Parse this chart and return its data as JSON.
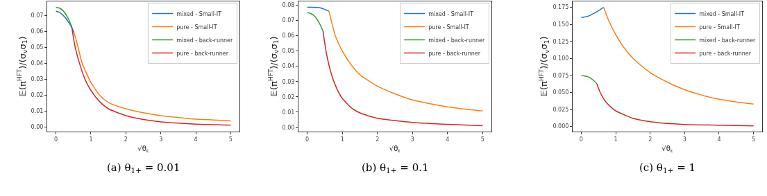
{
  "chart_data": [
    {
      "type": "line",
      "xlabel": "√θ$_{ε}$",
      "ylabel": "𝔼(π$^{HFT}$)/(σ$_{v}$σ$_{1}$)",
      "annotations": [
        "(a) θ$_{1+}$ = 0.01"
      ],
      "legend": "top right",
      "xlim": [
        -0.25,
        5.25
      ],
      "xticks": [
        0,
        1,
        2,
        3,
        4,
        5
      ],
      "ylim": [
        -0.0028,
        0.0787
      ],
      "yticks": [
        {
          "value": 0,
          "label": "0.00"
        },
        {
          "value": 0.01,
          "label": "0.01"
        },
        {
          "value": 0.02,
          "label": "0.02"
        },
        {
          "value": 0.03,
          "label": "0.03"
        },
        {
          "value": 0.04,
          "label": "0.04"
        },
        {
          "value": 0.05,
          "label": "0.05"
        },
        {
          "value": 0.06,
          "label": "0.06"
        },
        {
          "value": 0.07,
          "label": "0.07"
        }
      ],
      "series": [
        {
          "name": "mixed - Small-IT",
          "color": "#1f77b4",
          "x": [
            0,
            0.1,
            0.25,
            0.35,
            0.45,
            0.52
          ],
          "values": [
            0.0725,
            0.0718,
            0.069,
            0.066,
            0.0625,
            0.0588
          ]
        },
        {
          "name": "pure - Small-IT",
          "color": "#ff7f0e",
          "x": [
            0.52,
            0.6,
            0.75,
            1,
            1.25,
            1.5,
            2,
            2.5,
            3,
            3.5,
            4,
            4.5,
            5
          ],
          "values": [
            0.0588,
            0.053,
            0.04,
            0.028,
            0.02,
            0.0155,
            0.0115,
            0.009,
            0.0072,
            0.006,
            0.005,
            0.0045,
            0.0039
          ]
        },
        {
          "name": "mixed - back-runner",
          "color": "#2ca02c",
          "x": [
            0,
            0.1,
            0.2,
            0.35,
            0.45
          ],
          "values": [
            0.075,
            0.0745,
            0.073,
            0.068,
            0.063
          ]
        },
        {
          "name": "pure - back-runner",
          "color": "#d62728",
          "x": [
            0.45,
            0.55,
            0.7,
            0.85,
            1,
            1.25,
            1.5,
            2,
            2.5,
            3,
            3.5,
            4,
            4.5,
            5
          ],
          "values": [
            0.063,
            0.05,
            0.038,
            0.029,
            0.023,
            0.016,
            0.0115,
            0.0072,
            0.0048,
            0.0033,
            0.0025,
            0.0019,
            0.0015,
            0.0012
          ]
        }
      ]
    },
    {
      "type": "line",
      "xlabel": "√θ$_{ε}$",
      "ylabel": "𝔼(π$^{HFT}$)/(σ$_{v}$σ$_{1}$)",
      "annotations": [
        "(b) θ$_{1+}$ = 0.1"
      ],
      "legend": "top right",
      "xlim": [
        -0.25,
        5.25
      ],
      "xticks": [
        0,
        1,
        2,
        3,
        4,
        5
      ],
      "ylim": [
        -0.0027,
        0.0824
      ],
      "yticks": [
        {
          "value": 0,
          "label": "0.00"
        },
        {
          "value": 0.01,
          "label": "0.01"
        },
        {
          "value": 0.02,
          "label": "0.02"
        },
        {
          "value": 0.03,
          "label": "0.03"
        },
        {
          "value": 0.04,
          "label": "0.04"
        },
        {
          "value": 0.05,
          "label": "0.05"
        },
        {
          "value": 0.06,
          "label": "0.06"
        },
        {
          "value": 0.07,
          "label": "0.07"
        },
        {
          "value": 0.08,
          "label": "0.08"
        }
      ],
      "series": [
        {
          "name": "mixed - Small-IT",
          "color": "#1f77b4",
          "x": [
            0,
            0.2,
            0.4,
            0.62
          ],
          "values": [
            0.0785,
            0.0785,
            0.078,
            0.076
          ]
        },
        {
          "name": "pure - Small-IT",
          "color": "#ff7f0e",
          "x": [
            0.62,
            0.8,
            1,
            1.25,
            1.5,
            2,
            2.5,
            3,
            3.5,
            4,
            4.5,
            5
          ],
          "values": [
            0.076,
            0.06,
            0.05,
            0.041,
            0.0345,
            0.027,
            0.022,
            0.018,
            0.0155,
            0.0135,
            0.012,
            0.0108
          ]
        },
        {
          "name": "mixed - back-runner",
          "color": "#2ca02c",
          "x": [
            0,
            0.1,
            0.2,
            0.35,
            0.45
          ],
          "values": [
            0.075,
            0.0745,
            0.073,
            0.068,
            0.063
          ]
        },
        {
          "name": "pure - back-runner",
          "color": "#d62728",
          "x": [
            0.45,
            0.55,
            0.7,
            0.85,
            1,
            1.25,
            1.5,
            2,
            2.5,
            3,
            4,
            5
          ],
          "values": [
            0.063,
            0.048,
            0.034,
            0.025,
            0.019,
            0.013,
            0.0095,
            0.006,
            0.0045,
            0.0033,
            0.002,
            0.0012
          ]
        }
      ]
    },
    {
      "type": "line",
      "xlabel": "√θ$_{ε}$",
      "ylabel": "𝔼(π$^{HFT}$)/(σ$_{v}$σ$_{1}$)",
      "annotations": [
        "(c) θ$_{1+}$ = 1"
      ],
      "legend": "top right",
      "xlim": [
        -0.25,
        5.25
      ],
      "xticks": [
        0,
        1,
        2,
        3,
        4,
        5
      ],
      "ylim": [
        -0.0075,
        0.1837
      ],
      "yticks": [
        {
          "value": 0,
          "label": "0.000"
        },
        {
          "value": 0.025,
          "label": "0.025"
        },
        {
          "value": 0.05,
          "label": "0.050"
        },
        {
          "value": 0.075,
          "label": "0.075"
        },
        {
          "value": 0.1,
          "label": "0.100"
        },
        {
          "value": 0.125,
          "label": "0.125"
        },
        {
          "value": 0.15,
          "label": "0.150"
        },
        {
          "value": 0.175,
          "label": "0.175"
        }
      ],
      "series": [
        {
          "name": "mixed - Small-IT",
          "color": "#1f77b4",
          "x": [
            0,
            0.2,
            0.4,
            0.65
          ],
          "values": [
            0.16,
            0.162,
            0.167,
            0.175
          ]
        },
        {
          "name": "pure - Small-IT",
          "color": "#ff7f0e",
          "x": [
            0.65,
            0.8,
            1,
            1.25,
            1.5,
            2,
            2.5,
            3,
            3.5,
            4,
            4.5,
            5
          ],
          "values": [
            0.175,
            0.155,
            0.135,
            0.115,
            0.1,
            0.079,
            0.065,
            0.054,
            0.046,
            0.04,
            0.036,
            0.033
          ]
        },
        {
          "name": "mixed - back-runner",
          "color": "#2ca02c",
          "x": [
            0,
            0.1,
            0.2,
            0.35,
            0.45
          ],
          "values": [
            0.075,
            0.074,
            0.073,
            0.068,
            0.063
          ]
        },
        {
          "name": "pure - back-runner",
          "color": "#d62728",
          "x": [
            0.45,
            0.55,
            0.7,
            0.85,
            1,
            1.5,
            2,
            3,
            4,
            5
          ],
          "values": [
            0.063,
            0.05,
            0.037,
            0.029,
            0.023,
            0.012,
            0.007,
            0.003,
            0.002,
            0.001
          ]
        }
      ]
    }
  ]
}
